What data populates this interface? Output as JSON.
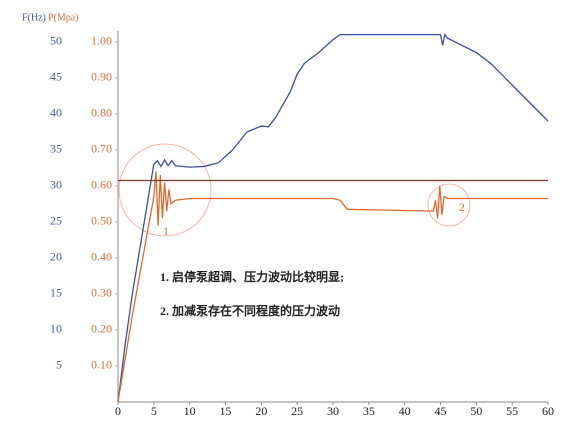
{
  "chart_data": {
    "type": "line",
    "y_label": "F(Hz)",
    "y2_label": "P(Mpa)",
    "xlim": [
      0,
      60
    ],
    "xticks": [
      0,
      5,
      10,
      15,
      20,
      25,
      30,
      35,
      40,
      45,
      50,
      55,
      60
    ],
    "ylim": [
      0,
      51.5
    ],
    "yticks": [
      5,
      10,
      15,
      20,
      25,
      30,
      35,
      40,
      45,
      50
    ],
    "y2lim": [
      0,
      1.03
    ],
    "y2ticks": [
      {
        "value": 0.1,
        "label": "0.10"
      },
      {
        "value": 0.2,
        "label": "0.20"
      },
      {
        "value": 0.3,
        "label": "0.30"
      },
      {
        "value": 0.4,
        "label": "0.40"
      },
      {
        "value": 0.5,
        "label": "0.50"
      },
      {
        "value": 0.6,
        "label": "0.60"
      },
      {
        "value": 0.7,
        "label": "0.70"
      },
      {
        "value": 0.8,
        "label": "0.80"
      },
      {
        "value": 0.9,
        "label": "0.90"
      },
      {
        "value": 1,
        "label": "1.00"
      }
    ],
    "y_color": "#4a5aa8",
    "y2_color": "#d8703a",
    "series": [
      {
        "color": "#3c4f9c",
        "axis": "y",
        "x": [
          0,
          1,
          2,
          3,
          4,
          5,
          5.5,
          6,
          6.5,
          7,
          7.5,
          8,
          10,
          12,
          14,
          16,
          18,
          20,
          21,
          22,
          24,
          25,
          26,
          28,
          30,
          31,
          45,
          45.3,
          45.6,
          46,
          48,
          50,
          52,
          54,
          56,
          58,
          60
        ],
        "values": [
          0,
          8,
          15,
          21,
          27,
          33,
          33.5,
          32.7,
          33.6,
          32.8,
          33.5,
          32.8,
          32.6,
          32.7,
          33.2,
          35,
          37.5,
          38.3,
          38.2,
          39.5,
          43,
          45.5,
          47,
          48.5,
          50.3,
          51,
          51,
          49.5,
          51,
          50.5,
          49.5,
          48.5,
          47,
          45,
          43,
          41,
          39
        ]
      },
      {
        "color": "#e0672e",
        "axis": "y2",
        "x": [
          0,
          1,
          2,
          3,
          4,
          5,
          5.3,
          5.6,
          5.9,
          6.2,
          6.5,
          6.8,
          7.1,
          7.4,
          8,
          10,
          30,
          31,
          32,
          44,
          44.3,
          44.6,
          44.9,
          45.2,
          45.5,
          46,
          60
        ],
        "values": [
          0,
          0.12,
          0.24,
          0.35,
          0.46,
          0.57,
          0.64,
          0.49,
          0.63,
          0.51,
          0.61,
          0.53,
          0.59,
          0.55,
          0.56,
          0.565,
          0.565,
          0.56,
          0.535,
          0.53,
          0.56,
          0.51,
          0.6,
          0.52,
          0.57,
          0.565,
          0.565
        ]
      },
      {
        "color": "#7a3b2a",
        "axis": "y2",
        "x": [
          0,
          60
        ],
        "values": [
          0.615,
          0.615
        ]
      }
    ],
    "annotations": [
      "1",
      "2",
      "1. 启停泵超调、压力波动比较明显;",
      "2. 加减泵存在不同程度的压力波动"
    ]
  }
}
